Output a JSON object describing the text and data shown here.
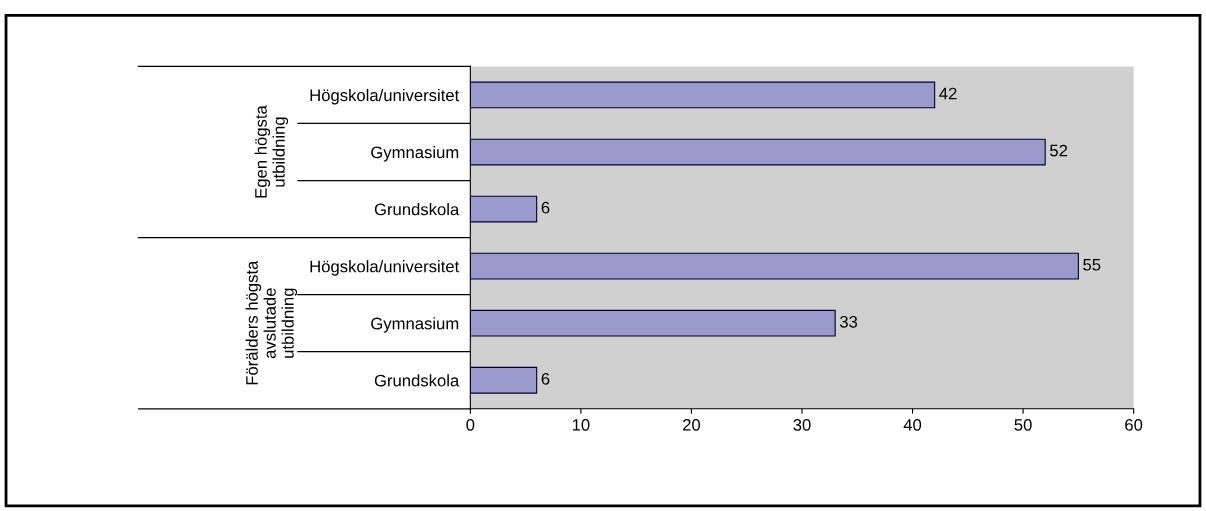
{
  "chart_data": {
    "type": "bar",
    "orientation": "horizontal",
    "categories": [
      "Högskola/universitet",
      "Gymnasium",
      "Grundskola",
      "Högskola/universitet",
      "Gymnasium",
      "Grundskola"
    ],
    "values": [
      42,
      52,
      6,
      55,
      33,
      6
    ],
    "color": "#9999cc",
    "xlim": [
      0,
      60
    ],
    "xticks": [
      0,
      10,
      20,
      30,
      40,
      50,
      60
    ],
    "data_labels": true,
    "grid": false,
    "annotations": [
      "Egen högsta\nutbildning",
      "Förälders högsta\navslutade\nutbildning"
    ]
  }
}
